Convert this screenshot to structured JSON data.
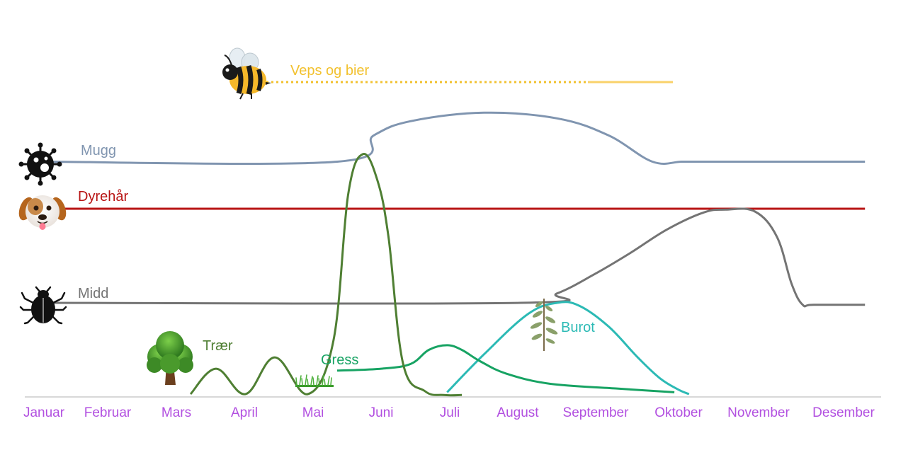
{
  "chart_data": {
    "type": "line",
    "title": "",
    "xlabel": "",
    "ylabel": "",
    "grid": false,
    "legend": "none",
    "categories": [
      "Januar",
      "Februar",
      "Mars",
      "April",
      "Mai",
      "Juni",
      "Juli",
      "August",
      "September",
      "Oktober",
      "November",
      "Desember"
    ],
    "series": [
      {
        "key": "veps",
        "name": "Veps og bier",
        "color": "#f2c12e",
        "icon": "bee-icon",
        "style": "dotted-to-solid",
        "from_month": 3.3,
        "to_month": 9.9
      },
      {
        "key": "mugg",
        "name": "Mugg",
        "color": "#8095b0",
        "icon": "mold-spore-icon",
        "x": [
          0,
          4,
          4.5,
          5,
          6,
          7,
          7.7,
          8.3,
          8.7,
          9,
          11.2
        ],
        "y": [
          2.5,
          2.5,
          2.78,
          2.93,
          3.02,
          2.96,
          2.78,
          2.5,
          2.5,
          2.5,
          2.5
        ]
      },
      {
        "key": "dyrehar",
        "name": "Dyrehår",
        "color": "#b81414",
        "icon": "dog-face-icon",
        "x": [
          0,
          11.2
        ],
        "y": [
          2.0,
          2.0
        ]
      },
      {
        "key": "midd",
        "name": "Midd",
        "color": "#747474",
        "icon": "beetle-icon",
        "x": [
          0,
          6.5,
          7,
          7.5,
          8,
          8.5,
          9,
          9.3,
          9.7,
          10,
          10.2,
          10.35,
          10.5,
          11.2
        ],
        "y": [
          1.0,
          1.0,
          1.1,
          1.3,
          1.53,
          1.78,
          1.96,
          1.99,
          1.97,
          1.7,
          1.2,
          0.98,
          0.98,
          0.98
        ]
      },
      {
        "key": "traer",
        "name": "Trær",
        "color": "#4f7f33",
        "icon": "tree-icon",
        "x": [
          2.0,
          2.35,
          2.75,
          3.15,
          3.6,
          3.95,
          4.15,
          4.35,
          4.55,
          4.7,
          4.9,
          5.2,
          5.45,
          5.7
        ],
        "y": [
          0.03,
          0.3,
          0.03,
          0.42,
          0.03,
          0.6,
          2.15,
          2.58,
          2.3,
          1.7,
          0.35,
          0.06,
          0.02,
          0.02
        ]
      },
      {
        "key": "gress",
        "name": "Gress",
        "color": "#17a363",
        "icon": "grass-icon",
        "x": [
          4.0,
          4.6,
          5.0,
          5.25,
          5.5,
          5.7,
          5.95,
          6.3,
          6.9,
          7.8,
          8.6
        ],
        "y": [
          0.28,
          0.3,
          0.35,
          0.5,
          0.55,
          0.5,
          0.38,
          0.25,
          0.14,
          0.09,
          0.05
        ]
      },
      {
        "key": "burot",
        "name": "Burot",
        "color": "#2cbab5",
        "icon": "mugwort-plant-icon",
        "x": [
          5.5,
          6.0,
          6.6,
          7.0,
          7.3,
          7.7,
          8.1,
          8.4,
          8.65,
          8.8
        ],
        "y": [
          0.05,
          0.45,
          0.88,
          1.0,
          0.97,
          0.75,
          0.42,
          0.2,
          0.08,
          0.03
        ]
      }
    ]
  },
  "colors": {
    "month_label": "#b250e0",
    "baseline": "#d8d8d8"
  }
}
